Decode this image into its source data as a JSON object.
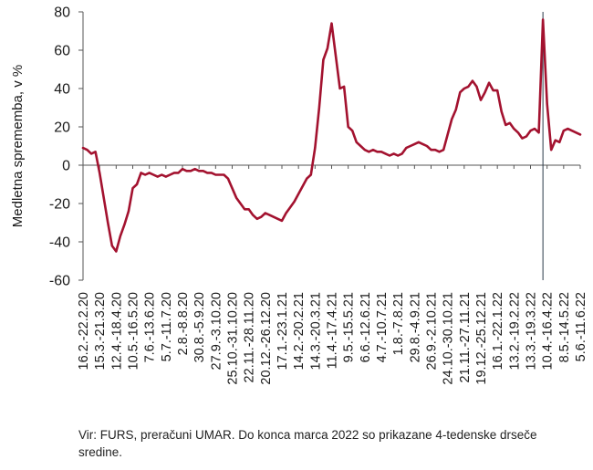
{
  "chart_data": {
    "type": "line",
    "ylabel": "Medletna sprememba, v %",
    "ylim": [
      -60,
      80
    ],
    "yticks": [
      80,
      60,
      40,
      20,
      0,
      -20,
      -40,
      -60
    ],
    "grid": false,
    "legend": "none",
    "line_color": "#a3122f",
    "marker_color": "#2b3a4a",
    "xtick_labels": [
      "16.2.-22.2.20",
      "15.3.-21.3.20",
      "12.4.-18.4.20",
      "10.5.-16.5.20",
      "7.6.-13.6.20",
      "5.7.-11.7.20",
      "2.8.-8.8.20",
      "30.8.-5.9.20",
      "27.9.-3.10.20",
      "25.10.-31.10.20",
      "22.11.-28.11.20",
      "20.12.-26.12.20",
      "17.1.-23.1.21",
      "14.2.-20.2.21",
      "14.3.-20.3.21",
      "11.4.-17.4.21",
      "9.5.-15.5.21",
      "6.6.-12.6.21",
      "4.7.-10.7.21",
      "1.8.-7.8.21",
      "29.8.-4.9.21",
      "26.9.-2.10.21",
      "24.10.-30.10.21",
      "21.11.-27.11.21",
      "19.12.-25.12.21",
      "16.1.-22.1.22",
      "13.2.-19.2.22",
      "13.3.-19.3.22",
      "10.4.-16.4.22",
      "8.5.-14.5.22",
      "5.6.-11.6.22"
    ],
    "values": [
      9,
      8,
      6,
      7,
      -4,
      -17,
      -30,
      -42,
      -45,
      -37,
      -31,
      -24,
      -12,
      -10,
      -4,
      -5,
      -4,
      -5,
      -6,
      -5,
      -6,
      -5,
      -4,
      -4,
      -2,
      -3,
      -3,
      -2,
      -3,
      -3,
      -4,
      -4,
      -5,
      -5,
      -5,
      -7,
      -12,
      -17,
      -20,
      -23,
      -23,
      -26,
      -28,
      -27,
      -25,
      -26,
      -27,
      -28,
      -29,
      -25,
      -22,
      -19,
      -15,
      -11,
      -7,
      -5,
      9,
      30,
      55,
      61,
      74,
      57,
      40,
      41,
      20,
      18,
      12,
      10,
      8,
      7,
      8,
      7,
      7,
      6,
      5,
      6,
      5,
      6,
      9,
      10,
      11,
      12,
      11,
      10,
      8,
      8,
      7,
      8,
      16,
      24,
      29,
      38,
      40,
      41,
      44,
      41,
      34,
      38,
      43,
      39,
      39,
      28,
      21,
      22,
      19,
      17,
      14,
      15,
      18,
      19,
      17,
      76,
      32,
      8,
      13,
      12,
      18,
      19,
      18,
      17,
      16
    ],
    "marker_index": 111,
    "source_note": "Vir: FURS, preračuni UMAR. Do konca marca 2022 so prikazane 4-tedenske drseče sredine."
  }
}
